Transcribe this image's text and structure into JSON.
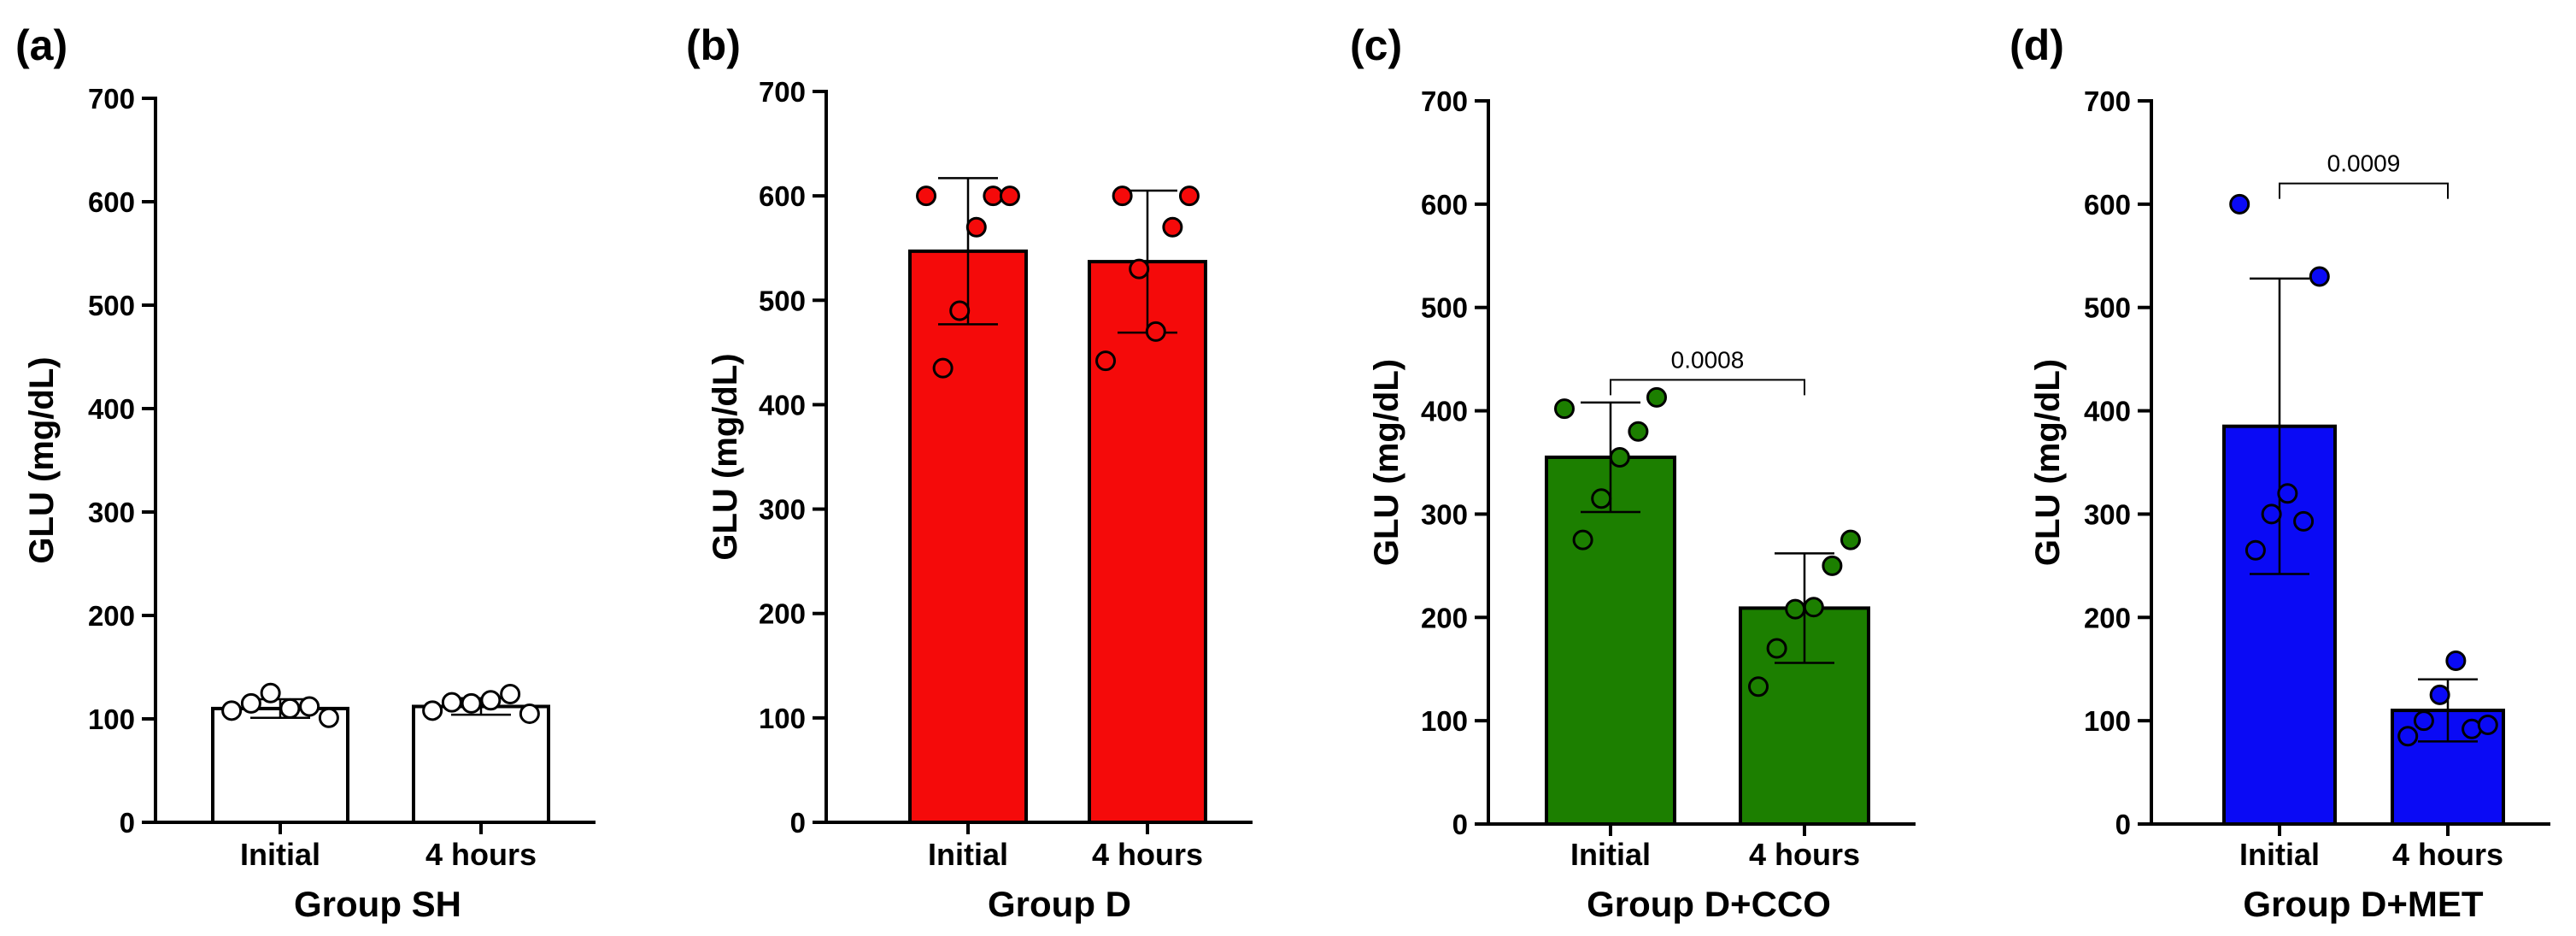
{
  "chart_data": [
    {
      "type": "bar",
      "panel_label": "(a)",
      "title": "",
      "xlabel": "Group SH",
      "ylabel": "GLU (mg/dL)",
      "ylim": [
        0,
        700
      ],
      "yticks": [
        0,
        100,
        200,
        300,
        400,
        500,
        600,
        700
      ],
      "categories": [
        "Initial",
        "4 hours"
      ],
      "values": [
        110,
        112
      ],
      "errors": [
        9,
        8
      ],
      "points": [
        [
          108,
          115,
          125,
          110,
          112,
          101
        ],
        [
          108,
          116,
          115,
          118,
          124,
          105
        ]
      ],
      "bar_color": "#ffffff",
      "point_color": "#ffffff",
      "comparison": null
    },
    {
      "type": "bar",
      "panel_label": "(b)",
      "title": "",
      "xlabel": "Group D",
      "ylabel": "GLU (mg/dL)",
      "ylim": [
        0,
        700
      ],
      "yticks": [
        0,
        100,
        200,
        300,
        400,
        500,
        600,
        700
      ],
      "categories": [
        "Initial",
        "4 hours"
      ],
      "values": [
        547,
        537
      ],
      "errors": [
        70,
        68
      ],
      "points": [
        [
          600,
          435,
          490,
          570,
          600,
          600
        ],
        [
          442,
          600,
          530,
          470,
          570,
          600
        ]
      ],
      "bar_color": "#f50a0a",
      "point_color": "#f50a0a",
      "comparison": null
    },
    {
      "type": "bar",
      "panel_label": "(c)",
      "title": "",
      "xlabel": "Group D+CCO",
      "ylabel": "GLU (mg/dL)",
      "ylim": [
        0,
        700
      ],
      "yticks": [
        0,
        100,
        200,
        300,
        400,
        500,
        600,
        700
      ],
      "categories": [
        "Initial",
        "4 hours"
      ],
      "values": [
        355,
        209
      ],
      "errors": [
        53,
        53
      ],
      "points": [
        [
          402,
          275,
          315,
          355,
          380,
          413
        ],
        [
          133,
          170,
          208,
          210,
          250,
          275
        ]
      ],
      "bar_color": "#1c7f00",
      "point_color": "#1c7f00",
      "comparison": {
        "label": "0.0008",
        "y": 430
      }
    },
    {
      "type": "bar",
      "panel_label": "(d)",
      "title": "",
      "xlabel": "Group D+MET",
      "ylabel": "GLU (mg/dL)",
      "ylim": [
        0,
        700
      ],
      "yticks": [
        0,
        100,
        200,
        300,
        400,
        500,
        600,
        700
      ],
      "categories": [
        "Initial",
        "4 hours"
      ],
      "values": [
        385,
        110
      ],
      "errors": [
        143,
        30
      ],
      "points": [
        [
          600,
          265,
          300,
          320,
          293,
          530
        ],
        [
          85,
          100,
          125,
          158,
          92,
          96
        ]
      ],
      "bar_color": "#0a0af5",
      "point_color": "#0a0af5",
      "comparison": {
        "label": "0.0009",
        "y": 620
      }
    }
  ]
}
